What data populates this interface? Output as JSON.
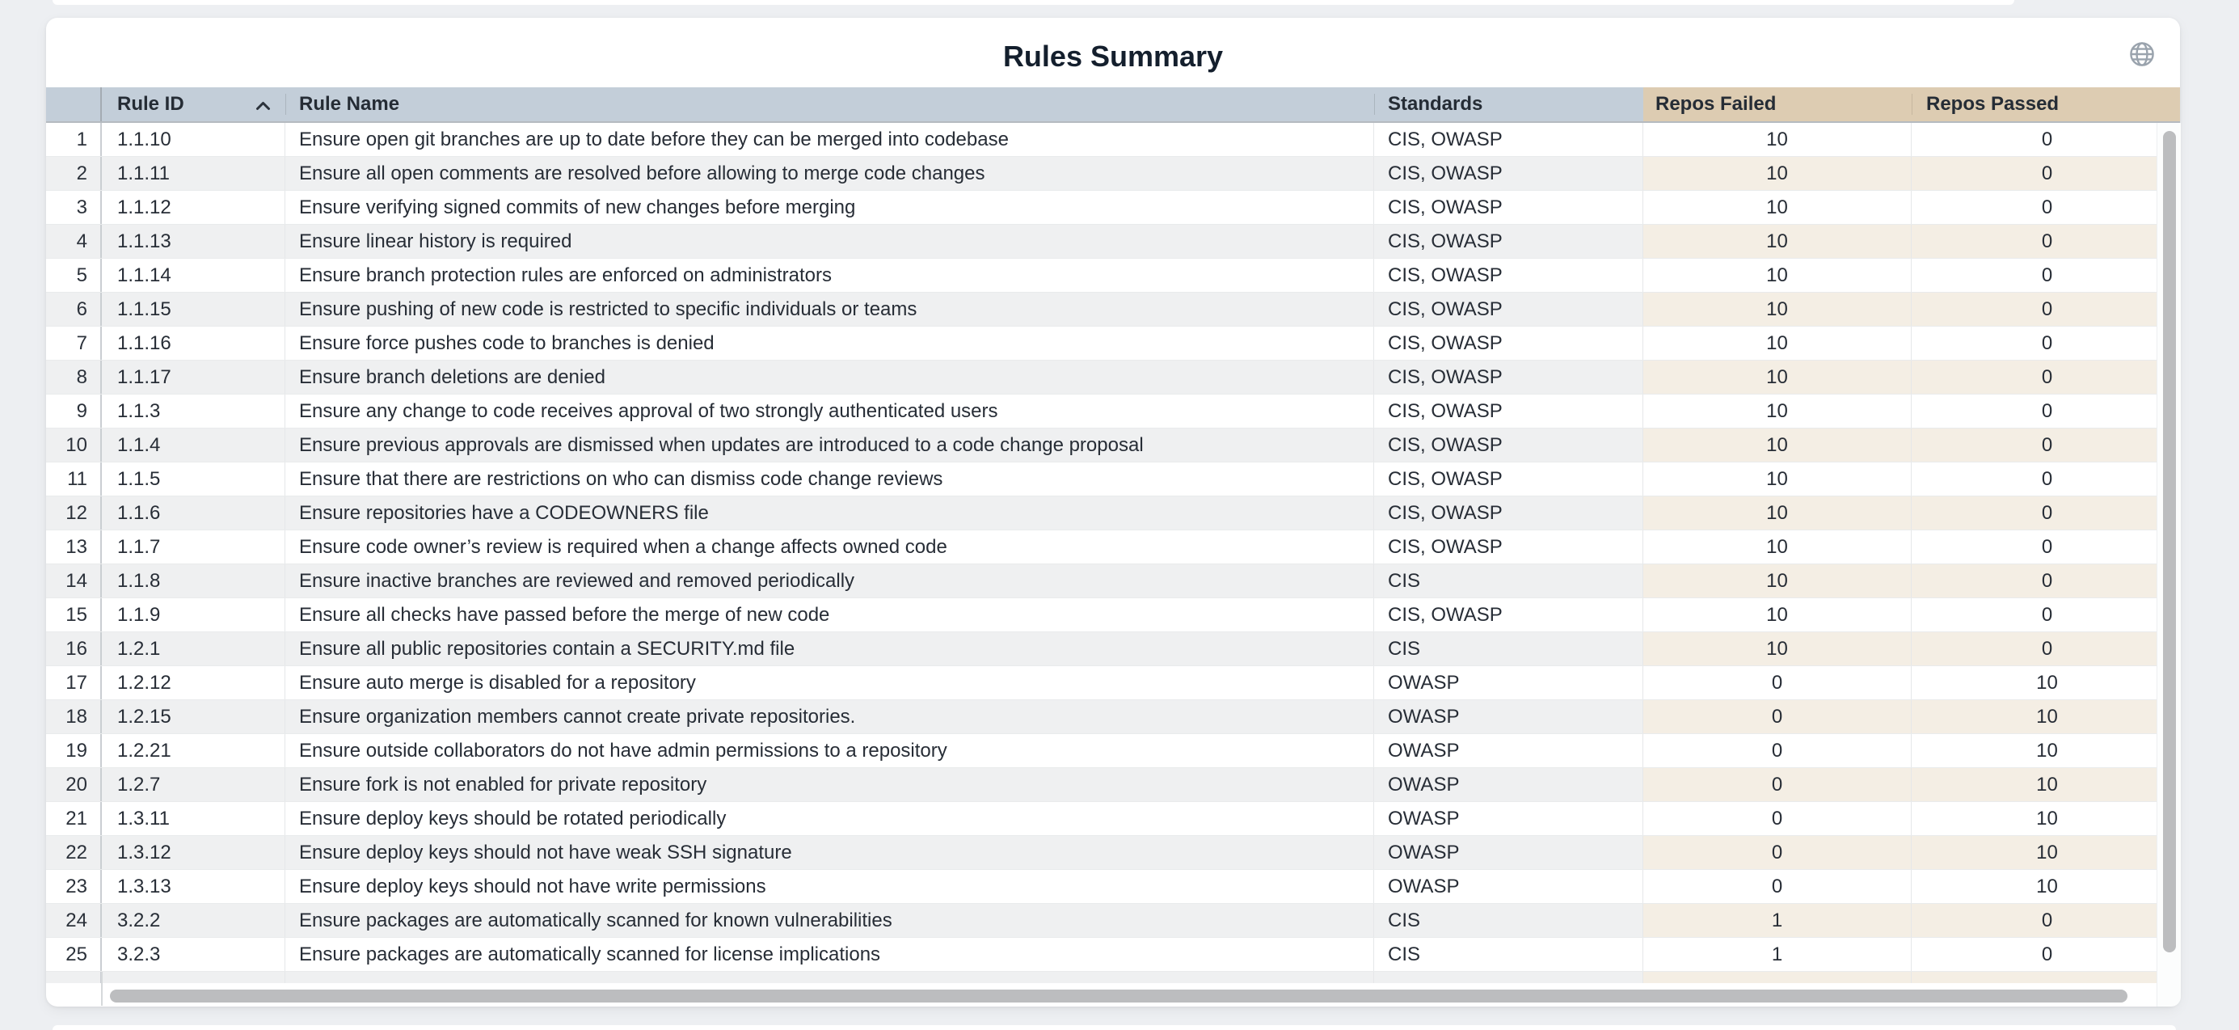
{
  "panel": {
    "title": "Rules Summary",
    "icons": {
      "globe": "globe-icon",
      "sort_ascending": "chevron-up-icon"
    }
  },
  "table": {
    "columns": {
      "row_index": "",
      "rule_id": "Rule ID",
      "rule_name": "Rule Name",
      "standards": "Standards",
      "repos_failed": "Repos Failed",
      "repos_passed": "Repos Passed"
    },
    "sort": {
      "column": "rule_id",
      "direction": "ascending"
    },
    "rows": [
      {
        "n": 1,
        "id": "1.1.10",
        "name": "Ensure open git branches are up to date before they can be merged into codebase",
        "std": "CIS, OWASP",
        "failed": 10,
        "passed": 0
      },
      {
        "n": 2,
        "id": "1.1.11",
        "name": "Ensure all open comments are resolved before allowing to merge code changes",
        "std": "CIS, OWASP",
        "failed": 10,
        "passed": 0
      },
      {
        "n": 3,
        "id": "1.1.12",
        "name": "Ensure verifying signed commits of new changes before merging",
        "std": "CIS, OWASP",
        "failed": 10,
        "passed": 0
      },
      {
        "n": 4,
        "id": "1.1.13",
        "name": "Ensure linear history is required",
        "std": "CIS, OWASP",
        "failed": 10,
        "passed": 0
      },
      {
        "n": 5,
        "id": "1.1.14",
        "name": "Ensure branch protection rules are enforced on administrators",
        "std": "CIS, OWASP",
        "failed": 10,
        "passed": 0
      },
      {
        "n": 6,
        "id": "1.1.15",
        "name": "Ensure pushing of new code is restricted to specific individuals or teams",
        "std": "CIS, OWASP",
        "failed": 10,
        "passed": 0
      },
      {
        "n": 7,
        "id": "1.1.16",
        "name": "Ensure force pushes code to branches is denied",
        "std": "CIS, OWASP",
        "failed": 10,
        "passed": 0
      },
      {
        "n": 8,
        "id": "1.1.17",
        "name": "Ensure branch deletions are denied",
        "std": "CIS, OWASP",
        "failed": 10,
        "passed": 0
      },
      {
        "n": 9,
        "id": "1.1.3",
        "name": "Ensure any change to code receives approval of two strongly authenticated users",
        "std": "CIS, OWASP",
        "failed": 10,
        "passed": 0
      },
      {
        "n": 10,
        "id": "1.1.4",
        "name": "Ensure previous approvals are dismissed when updates are introduced to a code change proposal",
        "std": "CIS, OWASP",
        "failed": 10,
        "passed": 0
      },
      {
        "n": 11,
        "id": "1.1.5",
        "name": "Ensure that there are restrictions on who can dismiss code change reviews",
        "std": "CIS, OWASP",
        "failed": 10,
        "passed": 0
      },
      {
        "n": 12,
        "id": "1.1.6",
        "name": "Ensure repositories have a CODEOWNERS file",
        "std": "CIS, OWASP",
        "failed": 10,
        "passed": 0
      },
      {
        "n": 13,
        "id": "1.1.7",
        "name": "Ensure code owner’s review is required when a change affects owned code",
        "std": "CIS, OWASP",
        "failed": 10,
        "passed": 0
      },
      {
        "n": 14,
        "id": "1.1.8",
        "name": "Ensure inactive branches are reviewed and removed periodically",
        "std": "CIS",
        "failed": 10,
        "passed": 0
      },
      {
        "n": 15,
        "id": "1.1.9",
        "name": "Ensure all checks have passed before the merge of new code",
        "std": "CIS, OWASP",
        "failed": 10,
        "passed": 0
      },
      {
        "n": 16,
        "id": "1.2.1",
        "name": "Ensure all public repositories contain a SECURITY.md file",
        "std": "CIS",
        "failed": 10,
        "passed": 0
      },
      {
        "n": 17,
        "id": "1.2.12",
        "name": "Ensure auto merge is disabled for a repository",
        "std": "OWASP",
        "failed": 0,
        "passed": 10
      },
      {
        "n": 18,
        "id": "1.2.15",
        "name": "Ensure organization members cannot create private repositories.",
        "std": "OWASP",
        "failed": 0,
        "passed": 10
      },
      {
        "n": 19,
        "id": "1.2.21",
        "name": "Ensure outside collaborators do not have admin permissions to a repository",
        "std": "OWASP",
        "failed": 0,
        "passed": 10
      },
      {
        "n": 20,
        "id": "1.2.7",
        "name": "Ensure fork is not enabled for private repository",
        "std": "OWASP",
        "failed": 0,
        "passed": 10
      },
      {
        "n": 21,
        "id": "1.3.11",
        "name": "Ensure deploy keys should be rotated periodically",
        "std": "OWASP",
        "failed": 0,
        "passed": 10
      },
      {
        "n": 22,
        "id": "1.3.12",
        "name": "Ensure deploy keys should not have weak SSH signature",
        "std": "OWASP",
        "failed": 0,
        "passed": 10
      },
      {
        "n": 23,
        "id": "1.3.13",
        "name": "Ensure deploy keys should not have write permissions",
        "std": "OWASP",
        "failed": 0,
        "passed": 10
      },
      {
        "n": 24,
        "id": "3.2.2",
        "name": "Ensure packages are automatically scanned for known vulnerabilities",
        "std": "CIS",
        "failed": 1,
        "passed": 0
      },
      {
        "n": 25,
        "id": "3.2.3",
        "name": "Ensure packages are automatically scanned for license implications",
        "std": "CIS",
        "failed": 1,
        "passed": 0
      }
    ]
  },
  "colors": {
    "page_background": "#edeff2",
    "card_background": "#ffffff",
    "header_blue": "#c3ced9",
    "header_tan": "#ddccb2",
    "even_row_gray": "#eff0f1",
    "even_row_tan": "#f4eee4",
    "text": "#272d36",
    "title_text": "#141f2d",
    "scrollbar_thumb": "#bcbdbf",
    "globe_icon": "#9aa3ad"
  }
}
